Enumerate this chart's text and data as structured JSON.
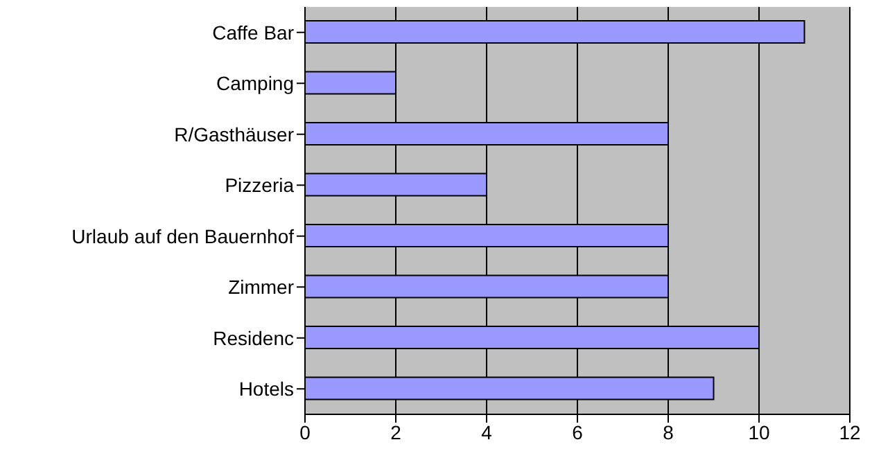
{
  "chart_data": {
    "type": "bar",
    "orientation": "horizontal",
    "categories": [
      "Caffe Bar",
      "Camping",
      "R/Gasthäuser",
      "Pizzeria",
      "Urlaub auf den Bauernhof",
      "Zimmer",
      "Residenc",
      "Hotels"
    ],
    "values": [
      11,
      2,
      8,
      4,
      8,
      8,
      10,
      9
    ],
    "color": "#9999ff",
    "xlim": [
      0,
      12
    ],
    "xticks": [
      0,
      2,
      4,
      6,
      8,
      10,
      12
    ],
    "grid": "x"
  }
}
